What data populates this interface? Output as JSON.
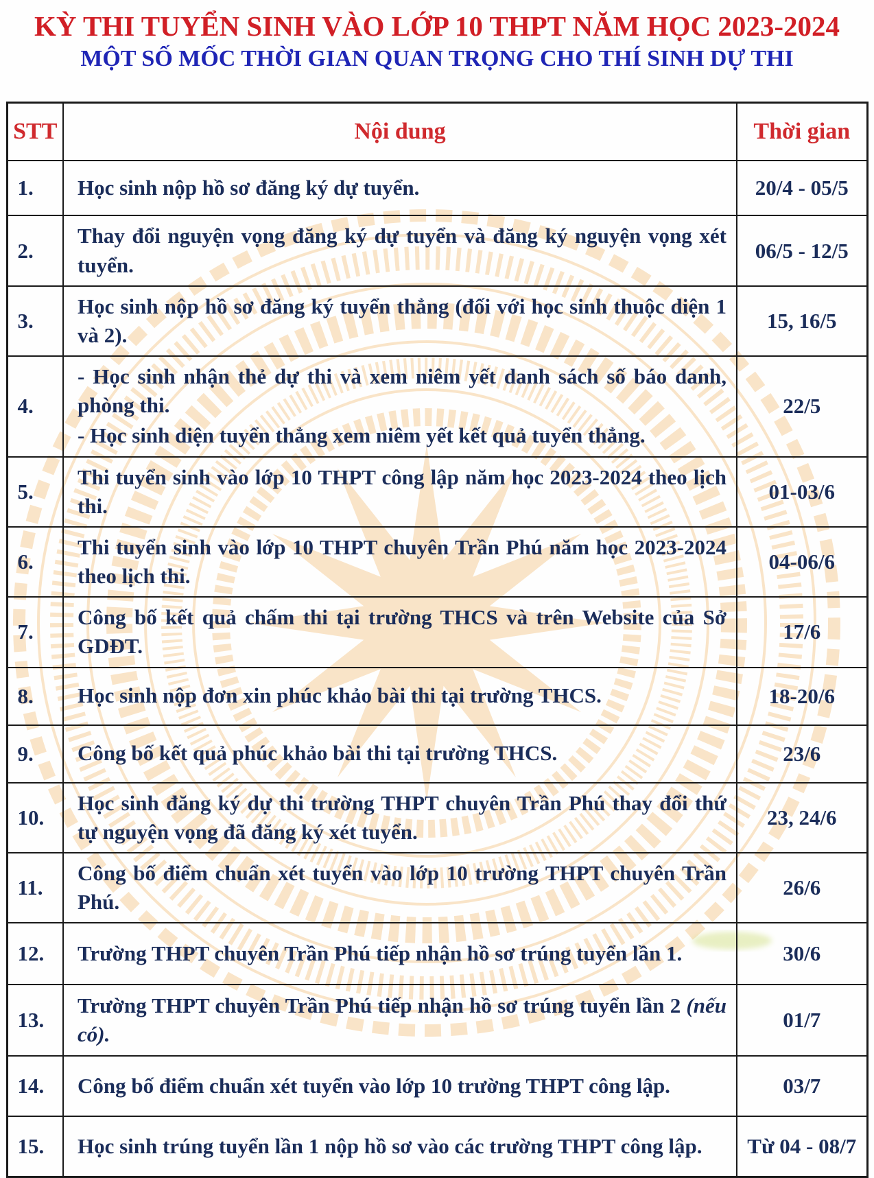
{
  "title": "KỲ THI TUYỂN SINH VÀO LỚP 10 THPT NĂM HỌC 2023-2024",
  "subtitle": "MỘT SỐ MỐC THỜI GIAN QUAN TRỌNG CHO THÍ SINH DỰ THI",
  "colors": {
    "title_red": "#d11f26",
    "subtitle_blue": "#1f25b5",
    "header_red": "#d02a2e",
    "body_navy": "#1b2d5a",
    "border_black": "#1a1a1a",
    "watermark_orange": "#f6cd98"
  },
  "watermark_name": "dong-son-drum-emblem",
  "table": {
    "headers": {
      "stt": "STT",
      "content": "Nội dung",
      "time": "Thời gian"
    },
    "rows": [
      {
        "no": "1.",
        "lines": [
          "Học sinh nộp hồ sơ đăng ký dự tuyển."
        ],
        "time": "20/4 - 05/5"
      },
      {
        "no": "2.",
        "lines": [
          "Thay đổi nguyện vọng đăng ký dự tuyển và đăng ký nguyện vọng xét tuyển."
        ],
        "time": "06/5 - 12/5"
      },
      {
        "no": "3.",
        "lines": [
          "Học sinh nộp hồ sơ đăng ký tuyển thẳng (đối với học sinh thuộc diện 1 và 2)."
        ],
        "time": "15, 16/5"
      },
      {
        "no": "4.",
        "lines": [
          "- Học sinh nhận thẻ dự thi và xem niêm yết danh sách số báo danh, phòng thi.",
          "- Học sinh diện tuyển thẳng xem niêm yết kết quả tuyển thẳng."
        ],
        "time": "22/5"
      },
      {
        "no": "5.",
        "lines": [
          "Thi tuyển sinh vào lớp 10 THPT công lập năm học 2023-2024 theo lịch thi."
        ],
        "time": "01-03/6"
      },
      {
        "no": "6.",
        "lines": [
          "Thi tuyển sinh vào lớp 10 THPT chuyên Trần Phú năm học 2023-2024 theo lịch thi."
        ],
        "time": "04-06/6"
      },
      {
        "no": "7.",
        "lines": [
          "Công bố kết quả chấm thi tại trường THCS và trên Website của Sở GDĐT."
        ],
        "time": "17/6"
      },
      {
        "no": "8.",
        "lines": [
          "Học sinh nộp đơn xin phúc khảo bài thi tại trường THCS."
        ],
        "time": "18-20/6"
      },
      {
        "no": "9.",
        "lines": [
          "Công bố kết quả phúc khảo bài thi tại trường THCS."
        ],
        "time": "23/6"
      },
      {
        "no": "10.",
        "lines": [
          "Học sinh đăng ký dự thi trường THPT chuyên Trần Phú thay đổi thứ tự nguyện vọng đã đăng ký xét tuyển."
        ],
        "time": "23, 24/6"
      },
      {
        "no": "11.",
        "lines": [
          "Công bố điểm chuẩn xét tuyển vào lớp 10 trường THPT chuyên Trần Phú."
        ],
        "time": "26/6"
      },
      {
        "no": "12.",
        "lines": [
          "Trường THPT chuyên Trần Phú tiếp nhận hồ sơ trúng tuyển lần 1."
        ],
        "time": "30/6"
      },
      {
        "no": "13.",
        "lines": [
          "Trường THPT chuyên Trần Phú tiếp nhận hồ sơ trúng tuyển lần 2 "
        ],
        "italic_tail": "(nếu có).",
        "time": "01/7"
      },
      {
        "no": "14.",
        "lines": [
          "Công bố điểm chuẩn xét tuyển vào lớp 10 trường THPT công lập."
        ],
        "time": "03/7"
      },
      {
        "no": "15.",
        "lines": [
          "Học sinh trúng tuyển lần 1 nộp hồ sơ vào các trường THPT công lập."
        ],
        "time": "Từ 04 - 08/7"
      }
    ]
  }
}
